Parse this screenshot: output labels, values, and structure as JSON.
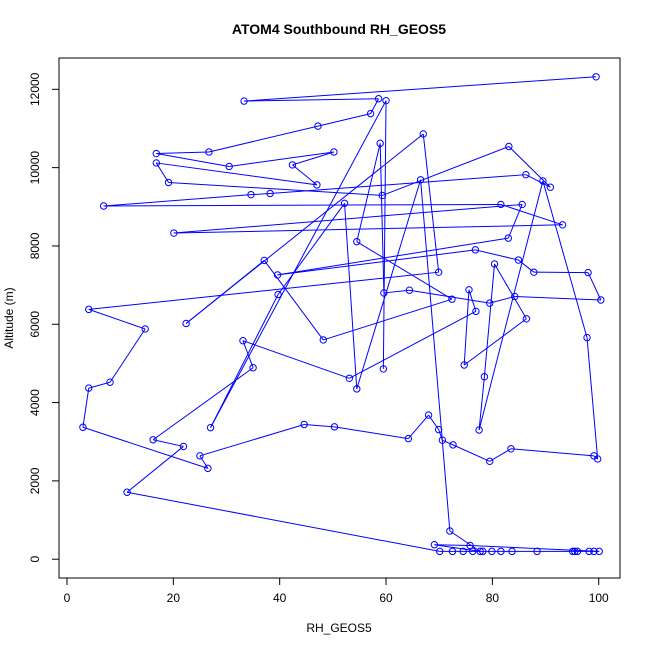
{
  "colors": {
    "series": "#0000ff",
    "axis": "#000000",
    "background": "#ffffff"
  },
  "chart_data": {
    "type": "scatter",
    "title": "ATOM4 Southbound RH_GEOS5",
    "xlabel": "RH_GEOS5",
    "ylabel": "Altitude (m)",
    "xlim": [
      -1.5,
      104
    ],
    "ylim": [
      -480,
      12800
    ],
    "xticks": [
      0,
      20,
      40,
      60,
      80,
      100
    ],
    "yticks": [
      0,
      2000,
      4000,
      6000,
      8000,
      10000,
      12000
    ],
    "grid": false,
    "legend": "none",
    "marker": "open-circle",
    "connect_points": true,
    "series": [
      {
        "points": [
          [
            99.5,
            12320
          ],
          [
            33.3,
            11700
          ],
          [
            58.6,
            11760
          ],
          [
            57.1,
            11380
          ],
          [
            47.2,
            11060
          ],
          [
            26.7,
            10400
          ],
          [
            16.8,
            10360
          ],
          [
            30.5,
            10030
          ],
          [
            50.2,
            10400
          ],
          [
            42.4,
            10070
          ],
          [
            47.0,
            9560
          ],
          [
            16.8,
            10120
          ],
          [
            19.1,
            9620
          ],
          [
            59.3,
            9290
          ],
          [
            83.1,
            10540
          ],
          [
            90.9,
            9500
          ],
          [
            86.3,
            9820
          ],
          [
            38.2,
            9340
          ],
          [
            34.6,
            9310
          ],
          [
            6.9,
            9020
          ],
          [
            81.6,
            9060
          ],
          [
            93.2,
            8540
          ],
          [
            20.1,
            8330
          ],
          [
            85.6,
            9060
          ],
          [
            83.0,
            8200
          ],
          [
            39.6,
            7260
          ],
          [
            76.8,
            7900
          ],
          [
            84.9,
            7640
          ],
          [
            87.8,
            7330
          ],
          [
            98.0,
            7320
          ],
          [
            100.4,
            6620
          ],
          [
            84.2,
            6710
          ],
          [
            79.5,
            6540
          ],
          [
            64.4,
            6870
          ],
          [
            59.6,
            6800
          ],
          [
            58.9,
            10620
          ],
          [
            54.5,
            8110
          ],
          [
            72.4,
            6640
          ],
          [
            48.2,
            5600
          ],
          [
            37.1,
            7630
          ],
          [
            22.4,
            6020
          ],
          [
            67.0,
            10860
          ],
          [
            69.9,
            7330
          ],
          [
            4.1,
            6380
          ],
          [
            14.7,
            5880
          ],
          [
            8.1,
            4520
          ],
          [
            4.1,
            4370
          ],
          [
            3.0,
            3370
          ],
          [
            26.5,
            2320
          ],
          [
            25.0,
            2640
          ],
          [
            44.6,
            3440
          ],
          [
            50.3,
            3380
          ],
          [
            64.2,
            3080
          ],
          [
            68.0,
            3680
          ],
          [
            69.9,
            3310
          ],
          [
            70.6,
            3040
          ],
          [
            72.6,
            2920
          ],
          [
            79.5,
            2500
          ],
          [
            83.5,
            2820
          ],
          [
            99.1,
            2640
          ],
          [
            99.8,
            2560
          ],
          [
            97.8,
            5660
          ],
          [
            89.5,
            9660
          ],
          [
            77.5,
            3300
          ],
          [
            78.5,
            4660
          ],
          [
            80.4,
            7540
          ],
          [
            86.4,
            6140
          ],
          [
            74.7,
            4960
          ],
          [
            75.6,
            6880
          ],
          [
            76.9,
            6330
          ],
          [
            53.1,
            4620
          ],
          [
            33.1,
            5580
          ],
          [
            35.0,
            4890
          ],
          [
            16.2,
            3050
          ],
          [
            21.9,
            2880
          ],
          [
            11.3,
            1710
          ],
          [
            70.1,
            200
          ],
          [
            72.5,
            200
          ],
          [
            74.5,
            200
          ],
          [
            76.3,
            200
          ],
          [
            78.2,
            200
          ],
          [
            79.9,
            200
          ],
          [
            81.6,
            200
          ],
          [
            83.7,
            200
          ],
          [
            88.4,
            200
          ],
          [
            95.1,
            200
          ],
          [
            95.5,
            200
          ],
          [
            96.0,
            200
          ],
          [
            98.2,
            200
          ],
          [
            99.1,
            200
          ],
          [
            100.1,
            200
          ],
          [
            75.8,
            350
          ],
          [
            69.1,
            370
          ],
          [
            77.7,
            200
          ],
          [
            72.0,
            720
          ],
          [
            66.5,
            9690
          ],
          [
            54.5,
            4350
          ],
          [
            52.2,
            9090
          ],
          [
            39.7,
            6760
          ],
          [
            27.0,
            3360
          ],
          [
            60.0,
            11710
          ],
          [
            59.5,
            4860
          ]
        ]
      }
    ]
  }
}
